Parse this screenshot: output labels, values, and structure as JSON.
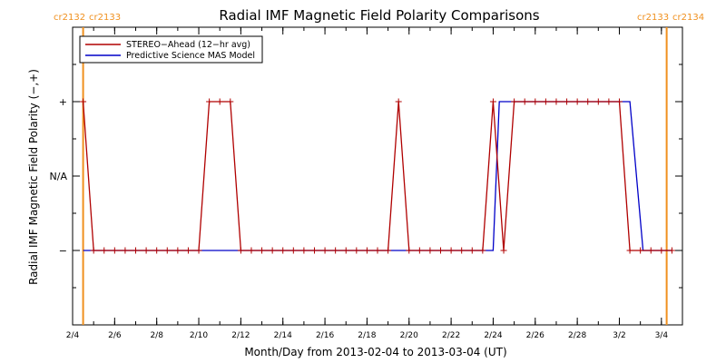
{
  "chart_data": {
    "type": "line",
    "title": "Radial IMF Magnetic Field Polarity Comparisons",
    "xlabel": "Month/Day from 2013-02-04 to 2013-03-04 (UT)",
    "ylabel": "Radial IMF Magnetic Field Polarity (−,+)",
    "x_ticks": [
      "2/4",
      "2/6",
      "2/8",
      "2/10",
      "2/12",
      "2/14",
      "2/16",
      "2/18",
      "2/20",
      "2/22",
      "2/24",
      "2/26",
      "2/28",
      "3/2",
      "3/4"
    ],
    "y_ticks": [
      "+",
      "N/A",
      "−"
    ],
    "xlim": [
      "2013-02-04T00:00",
      "2013-03-05T00:00"
    ],
    "ylim": [
      -2,
      2
    ],
    "legend_position": "top-left",
    "rotation_markers": [
      {
        "x": "2013-02-04T12:00",
        "left_label": "cr2132",
        "right_label": "cr2133"
      },
      {
        "x": "2013-03-04T06:00",
        "left_label": "cr2133",
        "right_label": "cr2134"
      }
    ],
    "series": [
      {
        "name": "STEREO−Ahead (12−hr avg)",
        "color": "#b00000",
        "marker": "plus",
        "points": [
          [
            "2013-02-04T12:00",
            1
          ],
          [
            "2013-02-05T00:00",
            -1
          ],
          [
            "2013-02-05T12:00",
            -1
          ],
          [
            "2013-02-06T00:00",
            -1
          ],
          [
            "2013-02-06T12:00",
            -1
          ],
          [
            "2013-02-07T00:00",
            -1
          ],
          [
            "2013-02-07T12:00",
            -1
          ],
          [
            "2013-02-08T00:00",
            -1
          ],
          [
            "2013-02-08T12:00",
            -1
          ],
          [
            "2013-02-09T00:00",
            -1
          ],
          [
            "2013-02-09T12:00",
            -1
          ],
          [
            "2013-02-10T00:00",
            -1
          ],
          [
            "2013-02-10T12:00",
            1
          ],
          [
            "2013-02-11T00:00",
            1
          ],
          [
            "2013-02-11T12:00",
            1
          ],
          [
            "2013-02-12T00:00",
            -1
          ],
          [
            "2013-02-12T12:00",
            -1
          ],
          [
            "2013-02-13T00:00",
            -1
          ],
          [
            "2013-02-13T12:00",
            -1
          ],
          [
            "2013-02-14T00:00",
            -1
          ],
          [
            "2013-02-14T12:00",
            -1
          ],
          [
            "2013-02-15T00:00",
            -1
          ],
          [
            "2013-02-15T12:00",
            -1
          ],
          [
            "2013-02-16T00:00",
            -1
          ],
          [
            "2013-02-16T12:00",
            -1
          ],
          [
            "2013-02-17T00:00",
            -1
          ],
          [
            "2013-02-17T12:00",
            -1
          ],
          [
            "2013-02-18T00:00",
            -1
          ],
          [
            "2013-02-18T12:00",
            -1
          ],
          [
            "2013-02-19T00:00",
            -1
          ],
          [
            "2013-02-19T12:00",
            1
          ],
          [
            "2013-02-20T00:00",
            -1
          ],
          [
            "2013-02-20T12:00",
            -1
          ],
          [
            "2013-02-21T00:00",
            -1
          ],
          [
            "2013-02-21T12:00",
            -1
          ],
          [
            "2013-02-22T00:00",
            -1
          ],
          [
            "2013-02-22T12:00",
            -1
          ],
          [
            "2013-02-23T00:00",
            -1
          ],
          [
            "2013-02-23T12:00",
            -1
          ],
          [
            "2013-02-24T00:00",
            1
          ],
          [
            "2013-02-24T12:00",
            -1
          ],
          [
            "2013-02-25T00:00",
            1
          ],
          [
            "2013-02-25T12:00",
            1
          ],
          [
            "2013-02-26T00:00",
            1
          ],
          [
            "2013-02-26T12:00",
            1
          ],
          [
            "2013-02-27T00:00",
            1
          ],
          [
            "2013-02-27T12:00",
            1
          ],
          [
            "2013-02-28T00:00",
            1
          ],
          [
            "2013-02-28T12:00",
            1
          ],
          [
            "2013-03-01T00:00",
            1
          ],
          [
            "2013-03-01T12:00",
            1
          ],
          [
            "2013-03-02T00:00",
            1
          ],
          [
            "2013-03-02T12:00",
            -1
          ],
          [
            "2013-03-03T00:00",
            -1
          ],
          [
            "2013-03-03T12:00",
            -1
          ],
          [
            "2013-03-04T00:00",
            -1
          ],
          [
            "2013-03-04T12:00",
            -1
          ]
        ]
      },
      {
        "name": "Predictive Science MAS Model",
        "color": "#0000c8",
        "marker": "none",
        "points": [
          [
            "2013-02-04T12:00",
            -1
          ],
          [
            "2013-02-24T00:00",
            -1
          ],
          [
            "2013-02-24T07:00",
            1
          ],
          [
            "2013-03-02T12:00",
            1
          ],
          [
            "2013-03-03T03:00",
            -1
          ],
          [
            "2013-03-04T12:00",
            -1
          ]
        ]
      }
    ]
  }
}
